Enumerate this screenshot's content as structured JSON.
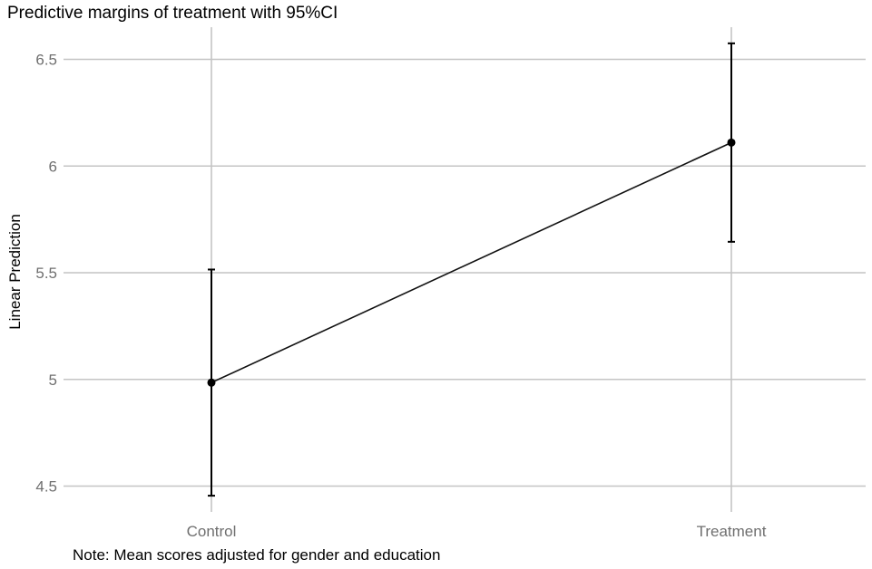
{
  "chart_data": {
    "type": "line",
    "title": "Predictive margins of treatment with 95%CI",
    "ylabel": "Linear Prediction",
    "xlabel": "",
    "note": "Note: Mean scores adjusted for gender and education",
    "categories": [
      "Control",
      "Treatment"
    ],
    "series": [
      {
        "values": [
          4.985,
          6.11
        ],
        "ci_lower": [
          4.455,
          5.645
        ],
        "ci_upper": [
          5.515,
          6.575
        ]
      }
    ],
    "ylim": [
      4.45,
      6.65
    ],
    "yticks": [
      4.5,
      5,
      5.5,
      6,
      6.5
    ],
    "ytick_labels": [
      "4.5",
      "5",
      "5.5",
      "6",
      "6.5"
    ],
    "grid": true,
    "legend": "none",
    "colors": {
      "line": "#111111",
      "marker": "#000000",
      "grid": "#c4c4c4",
      "tick_text": "#6f6f6f"
    }
  }
}
